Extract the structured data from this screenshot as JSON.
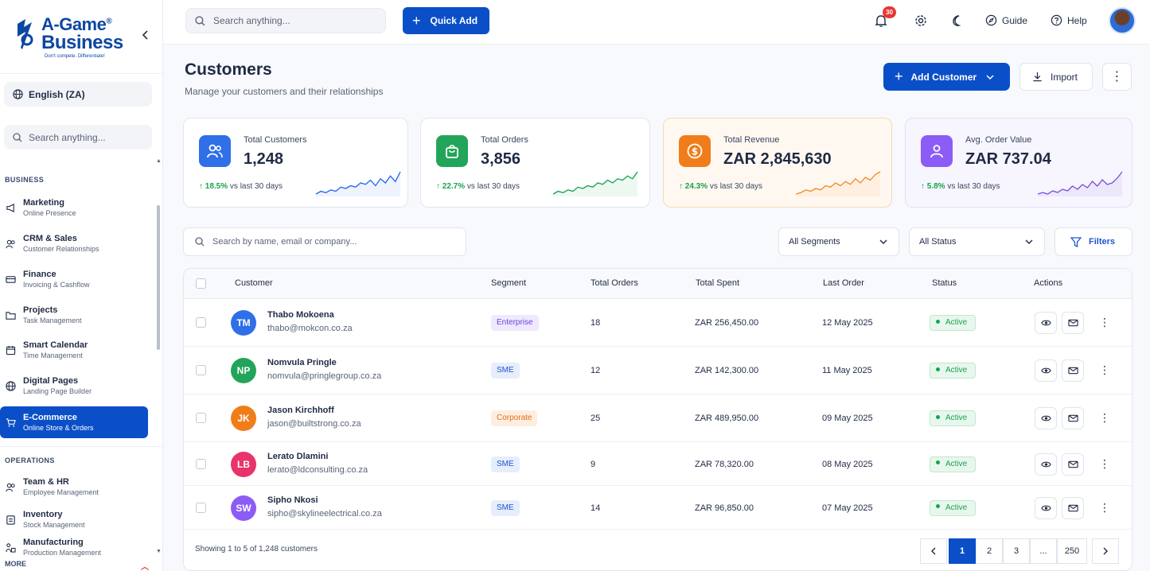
{
  "brand": {
    "name_line1": "A-Game",
    "name_line2": "Business",
    "registered": "®",
    "tagline": "Don't compete. Differentiate!",
    "color": "#0d47a1"
  },
  "sidebar": {
    "language": "English (ZA)",
    "search_placeholder": "Search anything...",
    "section_business": "BUSINESS",
    "section_operations": "OPERATIONS",
    "more_label": "MORE",
    "business_items": [
      {
        "title": "Marketing",
        "sub": "Online Presence",
        "icon": "megaphone-icon"
      },
      {
        "title": "CRM & Sales",
        "sub": "Customer Relationships",
        "icon": "users-icon"
      },
      {
        "title": "Finance",
        "sub": "Invoicing & Cashflow",
        "icon": "card-icon"
      },
      {
        "title": "Projects",
        "sub": "Task Management",
        "icon": "folder-icon"
      },
      {
        "title": "Smart Calendar",
        "sub": "Time Management",
        "icon": "calendar-icon"
      },
      {
        "title": "Digital Pages",
        "sub": "Landing Page Builder",
        "icon": "globe-icon"
      },
      {
        "title": "E-Commerce",
        "sub": "Online Store & Orders",
        "icon": "cart-icon",
        "active": true
      }
    ],
    "operations_items": [
      {
        "title": "Team & HR",
        "sub": "Employee Management",
        "icon": "team-icon"
      },
      {
        "title": "Inventory",
        "sub": "Stock Management",
        "icon": "box-icon"
      },
      {
        "title": "Manufacturing",
        "sub": "Production Management",
        "icon": "factory-icon"
      }
    ]
  },
  "topbar": {
    "search_placeholder": "Search anything...",
    "quick_add": "Quick Add",
    "notification_count": "30",
    "guide": "Guide",
    "help": "Help"
  },
  "page": {
    "title": "Customers",
    "subtitle": "Manage your customers and their relationships",
    "add_customer": "Add Customer",
    "import": "Import"
  },
  "stats": [
    {
      "label": "Total Customers",
      "value": "1,248",
      "pct": "18.5%",
      "vs": "vs last 30 days",
      "color": "#2563eb",
      "icon_bg": "#2f6fe8",
      "icon": "users-icon",
      "spark": [
        4,
        6,
        5,
        7,
        6,
        9,
        8,
        10,
        9,
        12,
        11,
        14,
        10,
        15,
        12,
        17,
        13,
        20
      ]
    },
    {
      "label": "Total Orders",
      "value": "3,856",
      "pct": "22.7%",
      "vs": "vs last 30 days",
      "color": "#16a34a",
      "icon_bg": "#22a55a",
      "icon": "bag-icon",
      "spark": [
        3,
        5,
        4,
        6,
        5,
        8,
        7,
        9,
        8,
        11,
        10,
        13,
        11,
        14,
        13,
        16,
        14,
        19
      ]
    },
    {
      "label": "Total Revenue",
      "value": "ZAR 2,845,630",
      "pct": "24.3%",
      "vs": "vs last 30 days",
      "color": "#f08a24",
      "icon_bg": "#f07d1a",
      "icon": "dollar-icon",
      "spark": [
        3,
        4,
        6,
        5,
        7,
        6,
        9,
        8,
        11,
        9,
        12,
        10,
        14,
        11,
        15,
        13,
        17,
        19
      ]
    },
    {
      "label": "Avg. Order Value",
      "value": "ZAR 737.04",
      "pct": "5.8%",
      "vs": "vs last 30 days",
      "color": "#7c4ddb",
      "icon_bg": "#8b5cf6",
      "icon": "person-icon",
      "spark": [
        4,
        5,
        4,
        6,
        5,
        7,
        6,
        9,
        7,
        10,
        8,
        12,
        9,
        13,
        10,
        11,
        14,
        18
      ]
    }
  ],
  "filters": {
    "search_placeholder": "Search by name, email or company...",
    "segment": "All Segments",
    "status": "All Status",
    "filters_btn": "Filters"
  },
  "table": {
    "columns": [
      "Customer",
      "Segment",
      "Total Orders",
      "Total Spent",
      "Last Order",
      "Status",
      "Actions"
    ],
    "rows": [
      {
        "initials": "TM",
        "avatar_color": "#2f6fe8",
        "name": "Thabo Mokoena",
        "email": "thabo@mokcon.co.za",
        "segment": "Enterprise",
        "seg_bg": "#efe9fd",
        "seg_fg": "#6d3fd6",
        "orders": "18",
        "spent": "ZAR 256,450.00",
        "last": "12 May 2025",
        "status": "Active"
      },
      {
        "initials": "NP",
        "avatar_color": "#22a55a",
        "name": "Nomvula Pringle",
        "email": "nomvula@pringlegroup.co.za",
        "segment": "SME",
        "seg_bg": "#e6eefc",
        "seg_fg": "#1f55d0",
        "orders": "12",
        "spent": "ZAR 142,300.00",
        "last": "11 May 2025",
        "status": "Active"
      },
      {
        "initials": "JK",
        "avatar_color": "#f07d1a",
        "name": "Jason Kirchhoff",
        "email": "jason@builtstrong.co.za",
        "segment": "Corporate",
        "seg_bg": "#fdeee0",
        "seg_fg": "#e0711a",
        "orders": "25",
        "spent": "ZAR 489,950.00",
        "last": "09 May 2025",
        "status": "Active"
      },
      {
        "initials": "LB",
        "avatar_color": "#e8336b",
        "name": "Lerato Dlamini",
        "email": "lerato@ldconsulting.co.za",
        "segment": "SME",
        "seg_bg": "#e6eefc",
        "seg_fg": "#1f55d0",
        "orders": "9",
        "spent": "ZAR 78,320.00",
        "last": "08 May 2025",
        "status": "Active"
      },
      {
        "initials": "SW",
        "avatar_color": "#8b5cf6",
        "name": "Sipho Nkosi",
        "email": "sipho@skylineelectrical.co.za",
        "segment": "SME",
        "seg_bg": "#e6eefc",
        "seg_fg": "#1f55d0",
        "orders": "14",
        "spent": "ZAR 96,850.00",
        "last": "07 May 2025",
        "status": "Active"
      }
    ],
    "showing": "Showing 1 to 5 of 1,248 customers",
    "pages": [
      "1",
      "2",
      "3",
      "...",
      "250"
    ]
  }
}
